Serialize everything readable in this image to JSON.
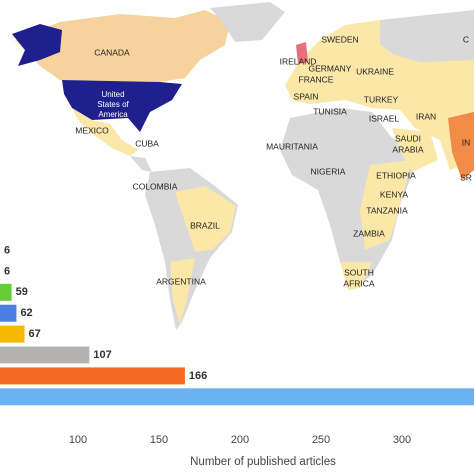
{
  "chart_data": [
    {
      "type": "map",
      "labels": [
        "CANADA",
        "United",
        "States of",
        "America",
        "MEXICO",
        "CUBA",
        "COLOMBIA",
        "BRAZIL",
        "ARGENTINA",
        "SWEDEN",
        "IRELAND",
        "GERMANY",
        "FRANCE",
        "UKRAINE",
        "SPAIN",
        "TURKEY",
        "TUNISIA",
        "ISRAEL",
        "IRAN",
        "SAUDI",
        "ARABIA",
        "MAURITANIA",
        "NIGERIA",
        "ETHIOPIA",
        "KENYA",
        "TANZANIA",
        "ZAMBIA",
        "SOUTH",
        "AFRICA",
        "C",
        "IN",
        "SR"
      ]
    },
    {
      "type": "bar",
      "orientation": "horizontal",
      "values": [
        6,
        6,
        59,
        62,
        67,
        107,
        166,
        350
      ],
      "colors": [
        "#9a9a9a",
        "#9a9a9a",
        "#66cc33",
        "#4a7fe0",
        "#f5b800",
        "#b3b3b3",
        "#f26a21",
        "#6ab2f2"
      ],
      "xlim": [
        0,
        350
      ],
      "xticks": [
        100,
        150,
        200,
        250,
        300
      ],
      "xlabel": "Number of published articles"
    }
  ]
}
